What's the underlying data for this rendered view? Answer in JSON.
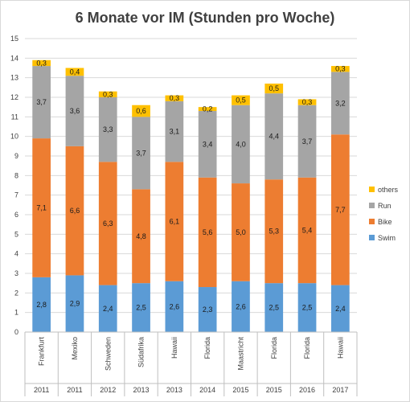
{
  "chart_data": {
    "type": "bar",
    "stacked": true,
    "title": "6 Monate vor IM (Stunden pro Woche)",
    "categories": [
      "Frankfurt",
      "Mexiko",
      "Schweden",
      "Südafrika",
      "Hawaii",
      "Florida",
      "Maastricht",
      "Florida",
      "Florida",
      "Hawaii"
    ],
    "years": [
      "2011",
      "2011",
      "2012",
      "2013",
      "2013",
      "2014",
      "2015",
      "2015",
      "2016",
      "2017"
    ],
    "series": [
      {
        "name": "Swim",
        "color": "#5b9bd5",
        "values": [
          2.8,
          2.9,
          2.4,
          2.5,
          2.6,
          2.3,
          2.6,
          2.5,
          2.5,
          2.4
        ],
        "labels": [
          "2,8",
          "2,9",
          "2,4",
          "2,5",
          "2,6",
          "2,3",
          "2,6",
          "2,5",
          "2,5",
          "2,4"
        ]
      },
      {
        "name": "Bike",
        "color": "#ed7d31",
        "values": [
          7.1,
          6.6,
          6.3,
          4.8,
          6.1,
          5.6,
          5.0,
          5.3,
          5.4,
          7.7
        ],
        "labels": [
          "7,1",
          "6,6",
          "6,3",
          "4,8",
          "6,1",
          "5,6",
          "5,0",
          "5,3",
          "5,4",
          "7,7"
        ]
      },
      {
        "name": "Run",
        "color": "#a5a5a5",
        "values": [
          3.7,
          3.6,
          3.3,
          3.7,
          3.1,
          3.4,
          4.0,
          4.4,
          3.7,
          3.2
        ],
        "labels": [
          "3,7",
          "3,6",
          "3,3",
          "3,7",
          "3,1",
          "3,4",
          "4,0",
          "4,4",
          "3,7",
          "3,2"
        ]
      },
      {
        "name": "others",
        "color": "#ffc000",
        "values": [
          0.3,
          0.4,
          0.3,
          0.6,
          0.3,
          0.2,
          0.5,
          0.5,
          0.3,
          0.3
        ],
        "labels": [
          "0,3",
          "0,4",
          "0,3",
          "0,6",
          "0,3",
          "0,2",
          "0,5",
          "0,5",
          "0,3",
          "0,3"
        ]
      }
    ],
    "ylim": [
      0,
      15
    ],
    "yticks": [
      "0",
      "1",
      "2",
      "3",
      "4",
      "5",
      "6",
      "7",
      "8",
      "9",
      "10",
      "11",
      "12",
      "13",
      "14",
      "15"
    ],
    "grid": true,
    "legend_position": "right"
  }
}
